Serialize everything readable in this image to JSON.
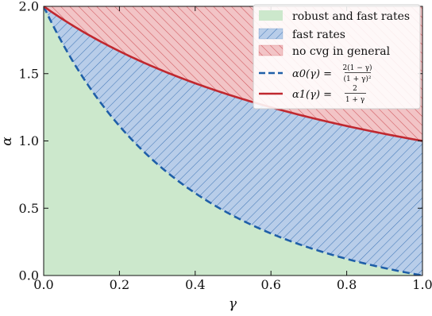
{
  "chart_data": {
    "type": "area",
    "xlabel": "γ",
    "ylabel": "α",
    "xlim": [
      0,
      1
    ],
    "ylim": [
      0,
      2
    ],
    "xticks": [
      0.0,
      0.2,
      0.4,
      0.6,
      0.8,
      1.0
    ],
    "yticks": [
      0.0,
      0.5,
      1.0,
      1.5,
      2.0
    ],
    "xtick_labels": [
      "0.0",
      "0.2",
      "0.4",
      "0.6",
      "0.8",
      "1.0"
    ],
    "ytick_labels": [
      "0.0",
      "0.5",
      "1.0",
      "1.5",
      "2.0"
    ],
    "grid": false,
    "legend_position": "top-right",
    "series": [
      {
        "name": "robust and fast rates",
        "kind": "fill",
        "region": "0 ≤ α ≤ α0(γ)",
        "color": "#cce8cc"
      },
      {
        "name": "fast rates",
        "kind": "hatched-fill",
        "region": "α0(γ) ≤ α ≤ α1(γ)",
        "color": "#b8cde9",
        "hatch_color": "#1f5fa8"
      },
      {
        "name": "no cvg in general",
        "kind": "hatched-fill",
        "region": "α ≥ α1(γ)",
        "color": "#f2c4c6",
        "hatch_color": "#c0282f"
      },
      {
        "name": "α0(γ) = 2(1 − γ)/(1 + γ)²",
        "kind": "dashed-line",
        "color": "#1f5fa8",
        "x": [
          0.0,
          0.1,
          0.2,
          0.3,
          0.4,
          0.5,
          0.6,
          0.7,
          0.8,
          0.9,
          1.0
        ],
        "y": [
          2.0,
          1.488,
          1.111,
          0.828,
          0.612,
          0.444,
          0.313,
          0.208,
          0.123,
          0.055,
          0.0
        ]
      },
      {
        "name": "α1(γ) = 2/(1 + γ)",
        "kind": "line",
        "color": "#c0282f",
        "x": [
          0.0,
          0.1,
          0.2,
          0.3,
          0.4,
          0.5,
          0.6,
          0.7,
          0.8,
          0.9,
          1.0
        ],
        "y": [
          2.0,
          1.818,
          1.667,
          1.538,
          1.429,
          1.333,
          1.25,
          1.176,
          1.111,
          1.053,
          1.0
        ]
      }
    ]
  },
  "legend": {
    "items": [
      {
        "label": "robust and fast rates"
      },
      {
        "label": "fast rates"
      },
      {
        "label": "no cvg in general"
      },
      {
        "label": "α0(γ) = 2(1 − γ)/(1 + γ)²",
        "label_main": "α0(γ) =",
        "label_num": "2(1 − γ)",
        "label_den": "(1 + γ)²"
      },
      {
        "label": "α1(γ) = 2/(1 + γ)",
        "label_main": "α1(γ) =",
        "label_num": "2",
        "label_den": "1 + γ"
      }
    ]
  }
}
